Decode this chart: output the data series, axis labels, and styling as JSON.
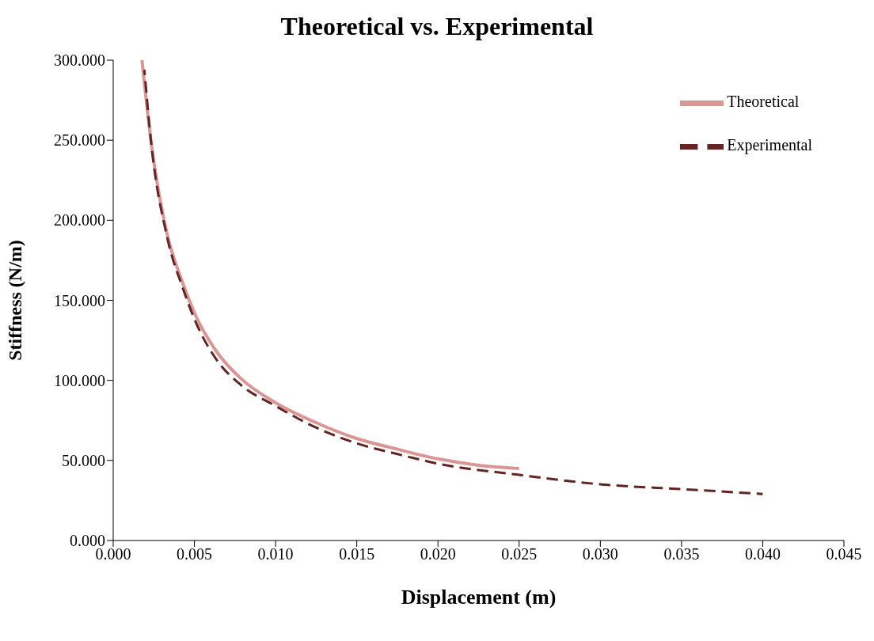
{
  "chart_data": {
    "type": "line",
    "title": "Theoretical vs. Experimental",
    "xlabel": "Displacement (m)",
    "ylabel": "Stiffness (N/m)",
    "xlim": [
      0,
      0.045
    ],
    "ylim": [
      0,
      300
    ],
    "xticks": [
      {
        "value": 0,
        "label": "0.000"
      },
      {
        "value": 0.005,
        "label": "0.005"
      },
      {
        "value": 0.01,
        "label": "0.010"
      },
      {
        "value": 0.015,
        "label": "0.015"
      },
      {
        "value": 0.02,
        "label": "0.020"
      },
      {
        "value": 0.025,
        "label": "0.025"
      },
      {
        "value": 0.03,
        "label": "0.030"
      },
      {
        "value": 0.035,
        "label": "0.035"
      },
      {
        "value": 0.04,
        "label": "0.040"
      },
      {
        "value": 0.045,
        "label": "0.045"
      }
    ],
    "yticks": [
      {
        "value": 0,
        "label": "0.000"
      },
      {
        "value": 50,
        "label": "50.000"
      },
      {
        "value": 100,
        "label": "100.000"
      },
      {
        "value": 150,
        "label": "150.000"
      },
      {
        "value": 200,
        "label": "200.000"
      },
      {
        "value": 250,
        "label": "250.000"
      },
      {
        "value": 300,
        "label": "300.000"
      }
    ],
    "grid": false,
    "legend": "top right",
    "series": [
      {
        "name": "Theoretical",
        "color": "#d99694",
        "line_style": "solid",
        "x": [
          0.00177,
          0.00232,
          0.00333,
          0.00424,
          0.0051,
          0.00636,
          0.00788,
          0.01,
          0.0124,
          0.0149,
          0.0175,
          0.02,
          0.0225,
          0.025
        ],
        "values": [
          300,
          250,
          191,
          162,
          140,
          118,
          101,
          86,
          74,
          64,
          57,
          51,
          47,
          45
        ]
      },
      {
        "name": "Experimental",
        "color": "#632523",
        "line_style": "dashed",
        "x": [
          0.00192,
          0.00232,
          0.00333,
          0.00424,
          0.0051,
          0.00636,
          0.00788,
          0.01,
          0.0124,
          0.0149,
          0.0175,
          0.02,
          0.025,
          0.0301,
          0.0352,
          0.04
        ],
        "values": [
          294,
          250,
          189,
          159,
          136,
          113,
          97,
          84,
          71,
          61,
          54,
          48,
          41,
          35,
          32,
          29
        ]
      }
    ]
  }
}
